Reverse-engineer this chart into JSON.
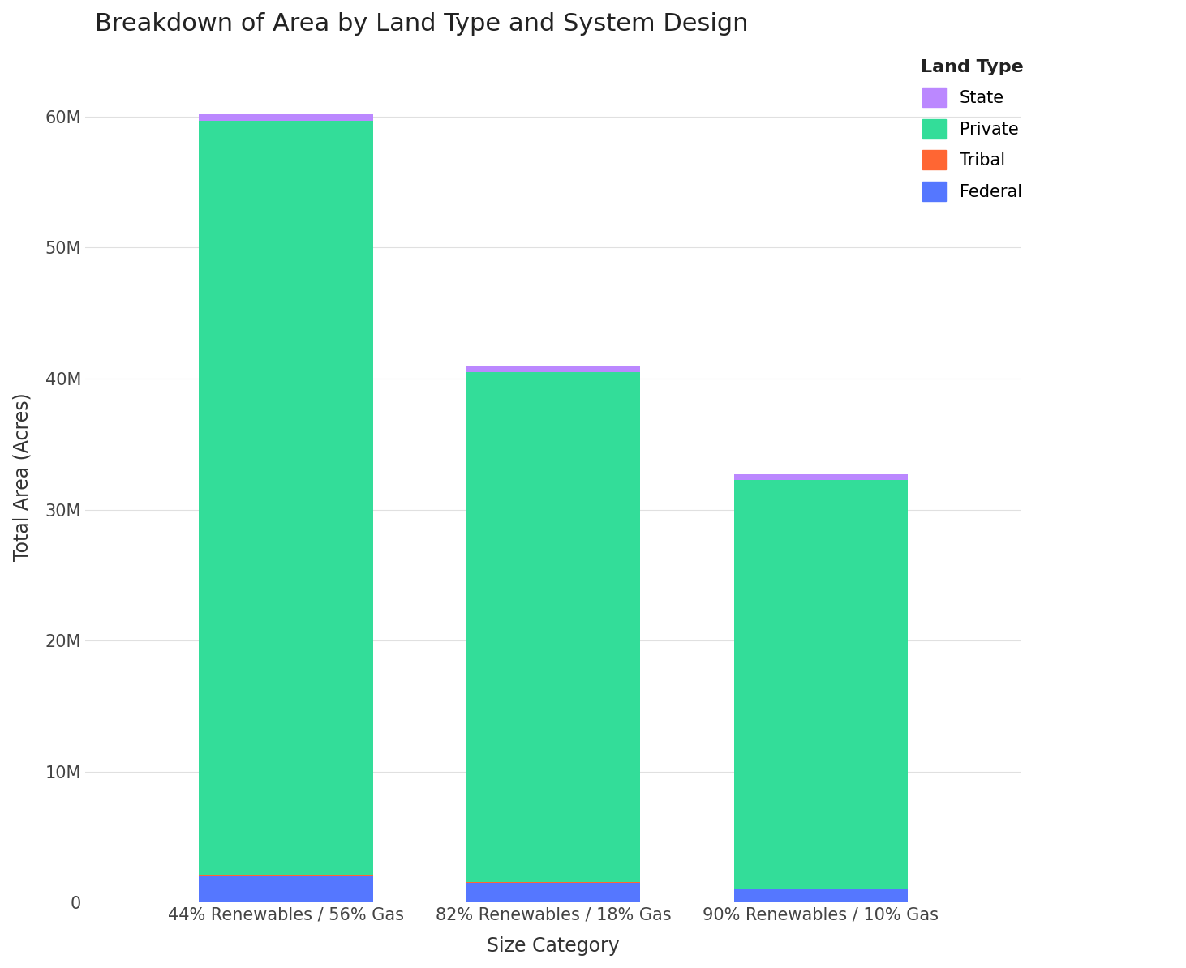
{
  "title": "Breakdown of Area by Land Type and System Design",
  "xlabel": "Size Category",
  "ylabel": "Total Area (Acres)",
  "categories": [
    "44% Renewables / 56% Gas",
    "82% Renewables / 18% Gas",
    "90% Renewables / 10% Gas"
  ],
  "land_types": [
    "Federal",
    "Tribal",
    "Private",
    "State"
  ],
  "colors": {
    "Federal": "#5577ff",
    "Tribal": "#ff6633",
    "Private": "#33dd99",
    "State": "#bb88ff"
  },
  "values": {
    "Federal": [
      2000000,
      1500000,
      1000000
    ],
    "Tribal": [
      150000,
      80000,
      80000
    ],
    "Private": [
      57500000,
      38900000,
      31200000
    ],
    "State": [
      500000,
      500000,
      400000
    ]
  },
  "ylim": [
    0,
    65000000
  ],
  "yticks": [
    0,
    10000000,
    20000000,
    30000000,
    40000000,
    50000000,
    60000000
  ],
  "ytick_labels": [
    "0",
    "10M",
    "20M",
    "30M",
    "40M",
    "50M",
    "60M"
  ],
  "background_color": "#ffffff",
  "title_fontsize": 22,
  "label_fontsize": 17,
  "tick_fontsize": 15,
  "legend_fontsize": 15,
  "legend_title_fontsize": 16,
  "bar_width": 0.65
}
